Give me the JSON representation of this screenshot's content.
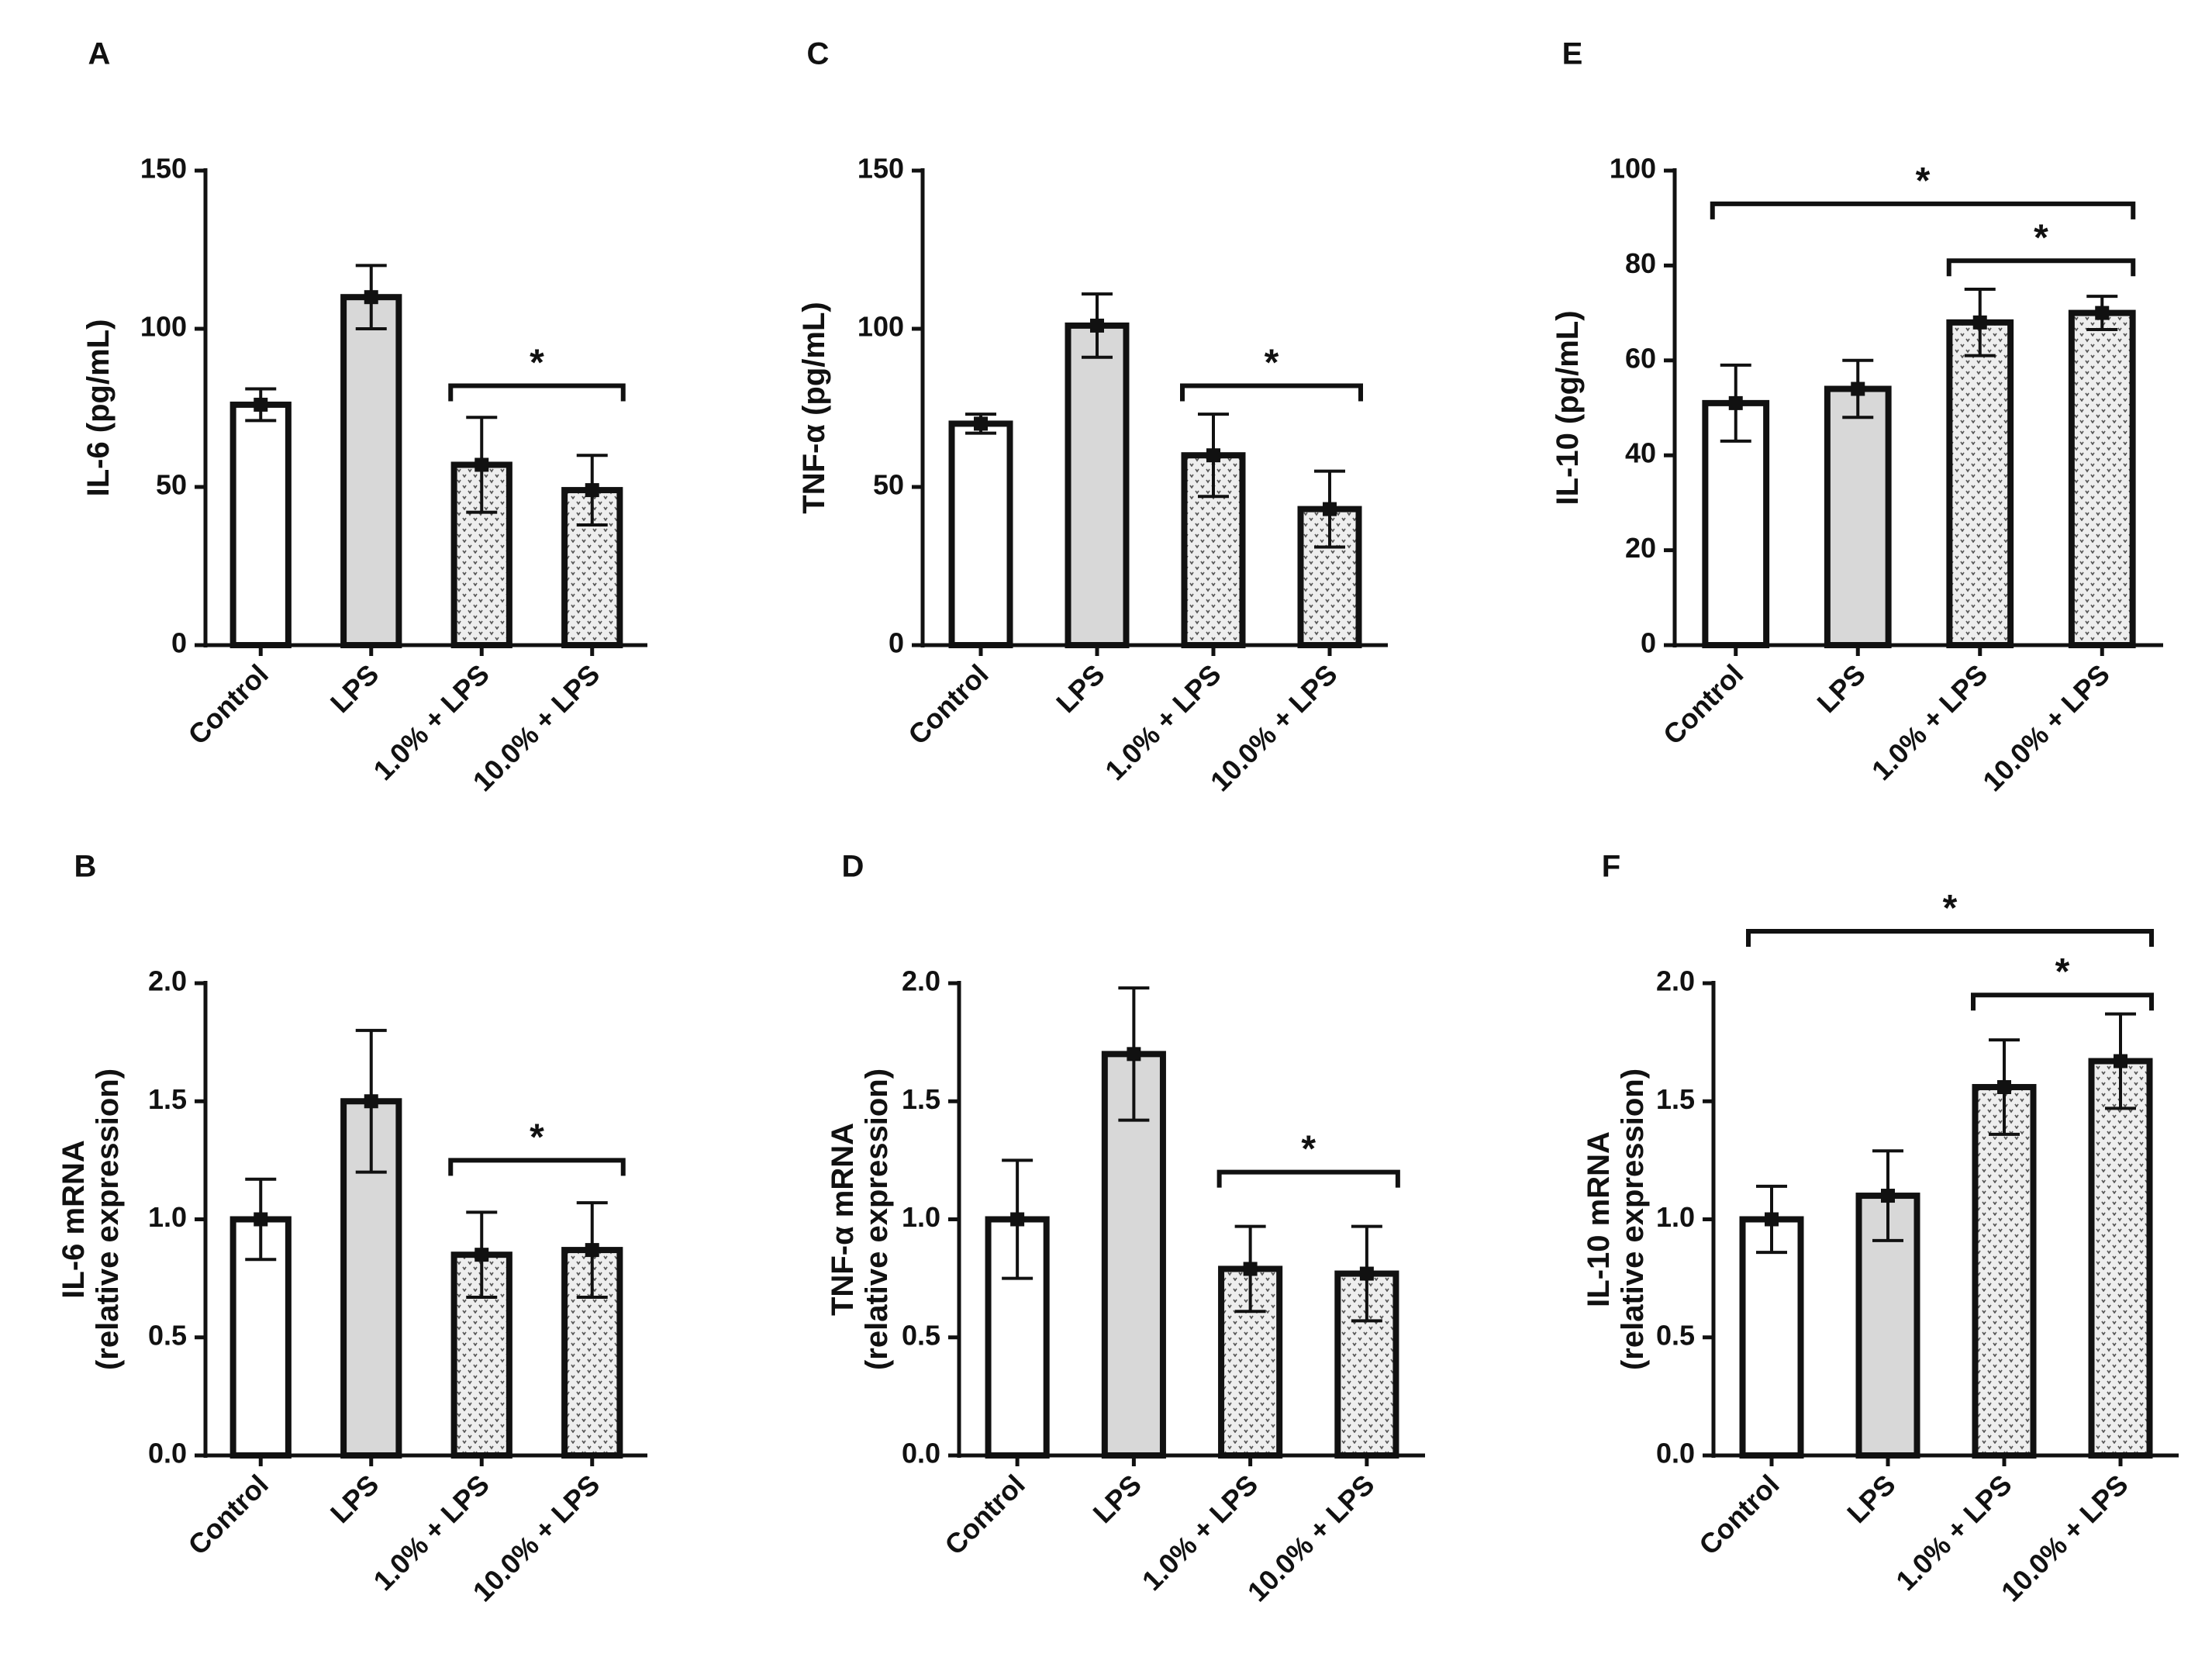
{
  "figure": {
    "categories": [
      "Control",
      "LPS",
      "1.0% + LPS",
      "10.0% + LPS"
    ],
    "colors": {
      "ink": "#111111",
      "control_fill": "#ffffff",
      "lps_fill": "#d8d8d8",
      "treated_fill": "#eeeeee",
      "treated_pattern": "#555555"
    }
  },
  "chart_data": [
    {
      "id": "A",
      "panel_label": "A",
      "type": "bar",
      "ylabel": [
        "IL-6 (pg/mL)"
      ],
      "ylim": [
        0,
        150
      ],
      "yticks": [
        0,
        50,
        100,
        150
      ],
      "tick_labels": [
        "0",
        "50",
        "100",
        "150"
      ],
      "categories": [
        "Control",
        "LPS",
        "1.0% + LPS",
        "10.0% + LPS"
      ],
      "values": [
        76,
        110,
        57,
        49
      ],
      "errors": [
        5,
        10,
        15,
        11
      ],
      "significance": [
        {
          "from": 2,
          "to": 3,
          "label": "*",
          "y": 82
        }
      ]
    },
    {
      "id": "B",
      "panel_label": "B",
      "type": "bar",
      "ylabel": [
        "IL-6 mRNA",
        "(relative expression)"
      ],
      "ylim": [
        0,
        2
      ],
      "yticks": [
        0,
        0.5,
        1,
        1.5,
        2
      ],
      "tick_labels": [
        "0.0",
        "0.5",
        "1.0",
        "1.5",
        "2.0"
      ],
      "categories": [
        "Control",
        "LPS",
        "1.0% + LPS",
        "10.0% + LPS"
      ],
      "values": [
        1.0,
        1.5,
        0.85,
        0.87
      ],
      "errors": [
        0.17,
        0.3,
        0.18,
        0.2
      ],
      "significance": [
        {
          "from": 2,
          "to": 3,
          "label": "*",
          "y": 1.25
        }
      ]
    },
    {
      "id": "C",
      "panel_label": "C",
      "type": "bar",
      "ylabel": [
        "TNF-α (pg/mL)"
      ],
      "ylim": [
        0,
        150
      ],
      "yticks": [
        0,
        50,
        100,
        150
      ],
      "tick_labels": [
        "0",
        "50",
        "100",
        "150"
      ],
      "categories": [
        "Control",
        "LPS",
        "1.0% + LPS",
        "10.0% + LPS"
      ],
      "values": [
        70,
        101,
        60,
        43
      ],
      "errors": [
        3,
        10,
        13,
        12
      ],
      "significance": [
        {
          "from": 2,
          "to": 3,
          "label": "*",
          "y": 82
        }
      ]
    },
    {
      "id": "D",
      "panel_label": "D",
      "type": "bar",
      "ylabel": [
        "TNF-α mRNA",
        "(relative expression)"
      ],
      "ylim": [
        0,
        2
      ],
      "yticks": [
        0,
        0.5,
        1,
        1.5,
        2
      ],
      "tick_labels": [
        "0.0",
        "0.5",
        "1.0",
        "1.5",
        "2.0"
      ],
      "categories": [
        "Control",
        "LPS",
        "1.0% + LPS",
        "10.0% + LPS"
      ],
      "values": [
        1.0,
        1.7,
        0.79,
        0.77
      ],
      "errors": [
        0.25,
        0.28,
        0.18,
        0.2
      ],
      "significance": [
        {
          "from": 2,
          "to": 3,
          "label": "*",
          "y": 1.2
        }
      ]
    },
    {
      "id": "E",
      "panel_label": "E",
      "type": "bar",
      "ylabel": [
        "IL-10 (pg/mL)"
      ],
      "ylim": [
        0,
        100
      ],
      "yticks": [
        0,
        20,
        40,
        60,
        80,
        100
      ],
      "tick_labels": [
        "0",
        "20",
        "40",
        "60",
        "80",
        "100"
      ],
      "categories": [
        "Control",
        "LPS",
        "1.0% + LPS",
        "10.0% + LPS"
      ],
      "values": [
        51,
        54,
        68,
        70
      ],
      "errors": [
        8,
        6,
        7,
        3.5
      ],
      "significance": [
        {
          "from": 0,
          "to": 3,
          "label": "*",
          "y": 93
        },
        {
          "from": 2,
          "to": 3,
          "label": "*",
          "y": 81
        }
      ]
    },
    {
      "id": "F",
      "panel_label": "F",
      "type": "bar",
      "ylabel": [
        "IL-10 mRNA",
        "(relative expression)"
      ],
      "ylim": [
        0,
        2
      ],
      "yticks": [
        0,
        0.5,
        1,
        1.5,
        2
      ],
      "tick_labels": [
        "0.0",
        "0.5",
        "1.0",
        "1.5",
        "2.0"
      ],
      "categories": [
        "Control",
        "LPS",
        "1.0% + LPS",
        "10.0% + LPS"
      ],
      "values": [
        1.0,
        1.1,
        1.56,
        1.67
      ],
      "errors": [
        0.14,
        0.19,
        0.2,
        0.2
      ],
      "significance": [
        {
          "from": 0,
          "to": 3,
          "label": "*",
          "y": 2.22
        },
        {
          "from": 2,
          "to": 3,
          "label": "*",
          "y": 1.95
        }
      ]
    }
  ]
}
